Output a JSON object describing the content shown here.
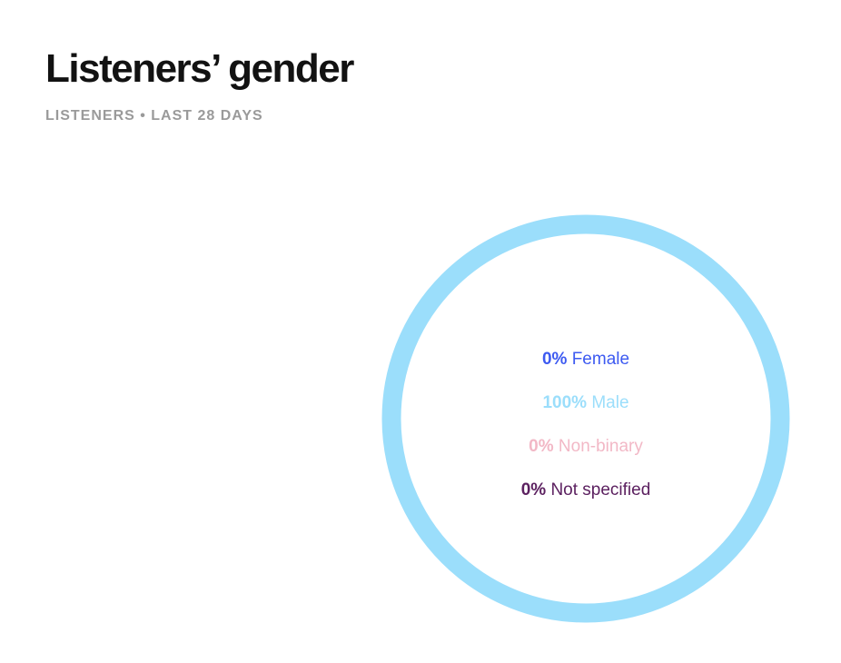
{
  "header": {
    "title": "Listeners’ gender",
    "subtitle": "LISTENERS • LAST 28 DAYS"
  },
  "chart_data": {
    "type": "pie",
    "title": "Listeners’ gender",
    "subtitle": "LISTENERS • LAST 28 DAYS",
    "donut": true,
    "slices": [
      {
        "label": "Female",
        "value": 0,
        "display": "0%",
        "color": "#3d5af1"
      },
      {
        "label": "Male",
        "value": 100,
        "display": "100%",
        "color": "#9bdefb"
      },
      {
        "label": "Non-binary",
        "value": 0,
        "display": "0%",
        "color": "#f2b8c6"
      },
      {
        "label": "Not specified",
        "value": 0,
        "display": "0%",
        "color": "#5c2160"
      }
    ]
  }
}
